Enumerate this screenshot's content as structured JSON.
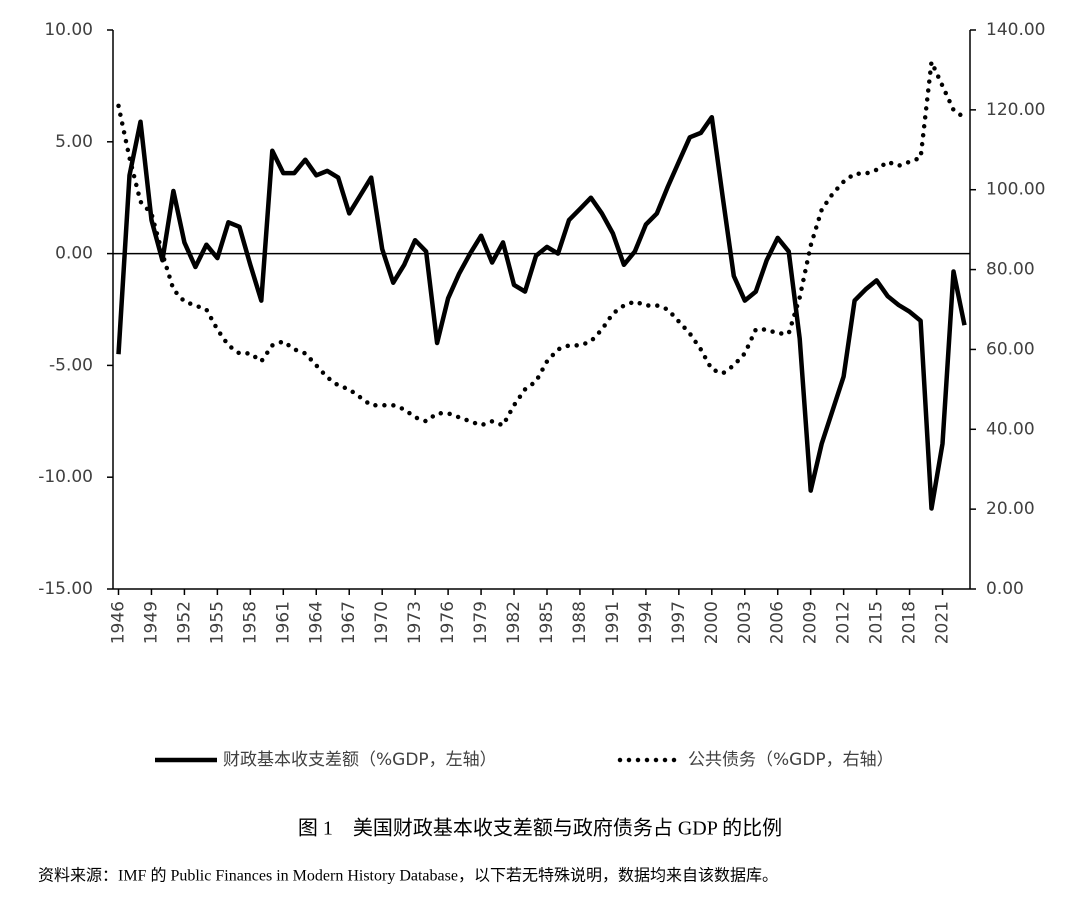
{
  "chart_data": {
    "type": "line",
    "x": [
      1946,
      1947,
      1948,
      1949,
      1950,
      1951,
      1952,
      1953,
      1954,
      1955,
      1956,
      1957,
      1958,
      1959,
      1960,
      1961,
      1962,
      1963,
      1964,
      1965,
      1966,
      1967,
      1968,
      1969,
      1970,
      1971,
      1972,
      1973,
      1974,
      1975,
      1976,
      1977,
      1978,
      1979,
      1980,
      1981,
      1982,
      1983,
      1984,
      1985,
      1986,
      1987,
      1988,
      1989,
      1990,
      1991,
      1992,
      1993,
      1994,
      1995,
      1996,
      1997,
      1998,
      1999,
      2000,
      2001,
      2002,
      2003,
      2004,
      2005,
      2006,
      2007,
      2008,
      2009,
      2010,
      2011,
      2012,
      2013,
      2014,
      2015,
      2016,
      2017,
      2018,
      2019,
      2020,
      2021,
      2022,
      2023
    ],
    "series": [
      {
        "name": "财政基本收支差额（%GDP，左轴）",
        "color": "#000000",
        "style": "solid",
        "values": [
          -4.5,
          3.5,
          5.9,
          1.5,
          -0.3,
          2.8,
          0.5,
          -0.6,
          0.4,
          -0.2,
          1.4,
          1.2,
          -0.5,
          -2.1,
          4.6,
          3.6,
          3.6,
          4.2,
          3.5,
          3.7,
          3.4,
          1.8,
          2.6,
          3.4,
          0.2,
          -1.3,
          -0.5,
          0.6,
          0.1,
          -4.0,
          -2.0,
          -0.9,
          0.0,
          0.8,
          -0.4,
          0.5,
          -1.4,
          -1.7,
          -0.1,
          0.3,
          0.0,
          1.5,
          2.0,
          2.5,
          1.8,
          0.9,
          -0.5,
          0.1,
          1.3,
          1.8,
          3.0,
          4.1,
          5.2,
          5.4,
          6.1,
          2.5,
          -1.0,
          -2.1,
          -1.7,
          -0.3,
          0.7,
          0.1,
          -3.8,
          -10.6,
          -8.5,
          -7.0,
          -5.5,
          -2.1,
          -1.6,
          -1.2,
          -1.9,
          -2.3,
          -2.6,
          -3.0,
          -11.4,
          -8.5,
          -0.8,
          -3.2
        ]
      },
      {
        "name": "公共债务（%GDP，右轴）",
        "color": "#000000",
        "style": "dotted",
        "axis": "y2",
        "values": [
          121,
          108,
          97,
          94,
          84,
          75,
          72,
          71,
          70,
          65,
          61,
          59,
          59,
          57,
          61,
          62,
          60,
          59,
          56,
          53,
          51,
          50,
          48,
          46,
          46,
          46,
          45,
          43,
          42,
          44,
          44,
          43,
          42,
          41,
          42,
          41,
          46,
          50,
          52,
          57,
          60,
          61,
          61,
          62,
          65,
          69,
          71,
          72,
          71,
          71,
          70,
          67,
          64,
          60,
          55,
          54,
          56,
          59,
          65,
          65,
          64,
          64,
          73,
          86,
          95,
          99,
          102,
          104,
          104,
          105,
          107,
          106,
          107,
          108,
          132,
          126,
          120,
          118
        ]
      }
    ],
    "xlim": [
      1945.5,
      2023.5
    ],
    "xticks": [
      1946,
      1949,
      1952,
      1955,
      1958,
      1961,
      1964,
      1967,
      1970,
      1973,
      1976,
      1979,
      1982,
      1985,
      1988,
      1991,
      1994,
      1997,
      2000,
      2003,
      2006,
      2009,
      2012,
      2015,
      2018,
      2021
    ],
    "ylim": [
      -15,
      10
    ],
    "yticks": [
      {
        "value": 10,
        "label": "10.00"
      },
      {
        "value": 5,
        "label": "5.00"
      },
      {
        "value": 0,
        "label": "0.00"
      },
      {
        "value": -5,
        "label": "-5.00"
      },
      {
        "value": -10,
        "label": "-10.00"
      },
      {
        "value": -15,
        "label": "-15.00"
      }
    ],
    "y2lim": [
      0,
      140
    ],
    "y2ticks": [
      {
        "value": 0,
        "label": "0.00"
      },
      {
        "value": 20,
        "label": "20.00"
      },
      {
        "value": 40,
        "label": "40.00"
      },
      {
        "value": 60,
        "label": "60.00"
      },
      {
        "value": 80,
        "label": "80.00"
      },
      {
        "value": 100,
        "label": "100.00"
      },
      {
        "value": 120,
        "label": "120.00"
      },
      {
        "value": 140,
        "label": "140.00"
      }
    ],
    "caption": "图 1　美国财政基本收支差额与政府债务占 GDP 的比例",
    "note": "资料来源：IMF 的 Public Finances in Modern History Database，以下若无特殊说明，数据均来自该数据库。"
  }
}
